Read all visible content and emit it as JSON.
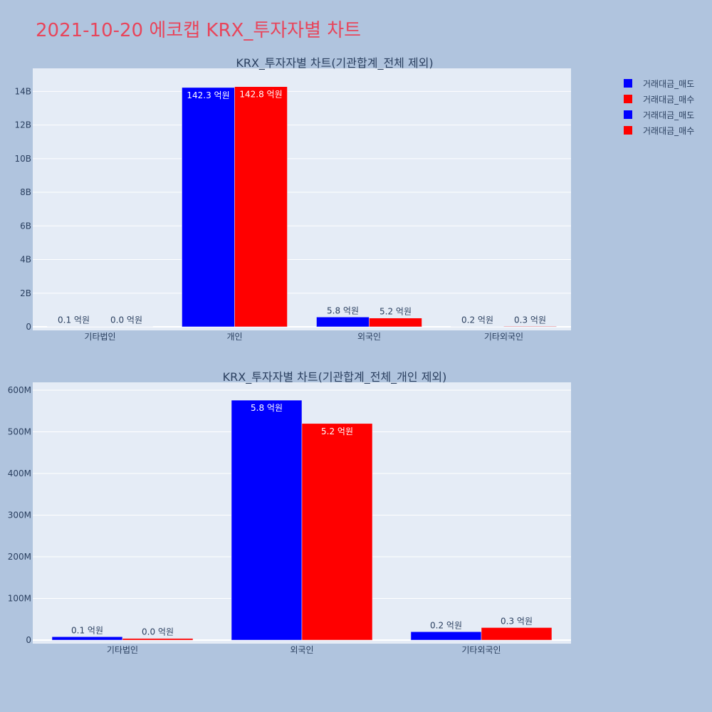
{
  "page": {
    "title": "2021-10-20 에코캡 KRX_투자자별 차트",
    "title_color": "#e8455b",
    "background": "#b0c4de"
  },
  "legend": {
    "items": [
      {
        "label": "거래대금_매도",
        "color": "#0000ff"
      },
      {
        "label": "거래대금_매수",
        "color": "#ff0000"
      },
      {
        "label": "거래대금_매도",
        "color": "#0000ff"
      },
      {
        "label": "거래대금_매수",
        "color": "#ff0000"
      }
    ]
  },
  "chart_data": [
    {
      "type": "bar",
      "title": "KRX_투자자별 차트(기관합계_전체 제외)",
      "categories": [
        "기타법인",
        "개인",
        "외국인",
        "기타외국인"
      ],
      "series": [
        {
          "name": "거래대금_매도",
          "color": "#0000ff",
          "values": [
            10000000,
            14230000000,
            580000000,
            20000000
          ],
          "labels": [
            "0.1 억원",
            "142.3 억원",
            "5.8 억원",
            "0.2 억원"
          ]
        },
        {
          "name": "거래대금_매수",
          "color": "#ff0000",
          "values": [
            4000000,
            14280000000,
            520000000,
            30000000
          ],
          "labels": [
            "0.0 억원",
            "142.8 억원",
            "5.2 억원",
            "0.3 억원"
          ]
        }
      ],
      "yticks": [
        0,
        2000000000,
        4000000000,
        6000000000,
        8000000000,
        10000000000,
        12000000000,
        14000000000
      ],
      "ytick_labels": [
        "0",
        "2B",
        "4B",
        "6B",
        "8B",
        "10B",
        "12B",
        "14B"
      ],
      "ylim": [
        0,
        15200000000
      ],
      "grid": true
    },
    {
      "type": "bar",
      "title": "KRX_투자자별 차트(기관합계_전체_개인 제외)",
      "categories": [
        "기타법인",
        "외국인",
        "기타외국인"
      ],
      "series": [
        {
          "name": "거래대금_매도",
          "color": "#0000ff",
          "values": [
            8000000,
            576000000,
            20000000
          ],
          "labels": [
            "0.1 억원",
            "5.8 억원",
            "0.2 억원"
          ]
        },
        {
          "name": "거래대금_매수",
          "color": "#ff0000",
          "values": [
            4000000,
            520000000,
            30000000
          ],
          "labels": [
            "0.0 억원",
            "5.2 억원",
            "0.3 억원"
          ]
        }
      ],
      "yticks": [
        0,
        100000000,
        200000000,
        300000000,
        400000000,
        500000000,
        600000000
      ],
      "ytick_labels": [
        "0",
        "100M",
        "200M",
        "300M",
        "400M",
        "500M",
        "600M"
      ],
      "ylim": [
        0,
        612000000
      ],
      "grid": true
    }
  ]
}
